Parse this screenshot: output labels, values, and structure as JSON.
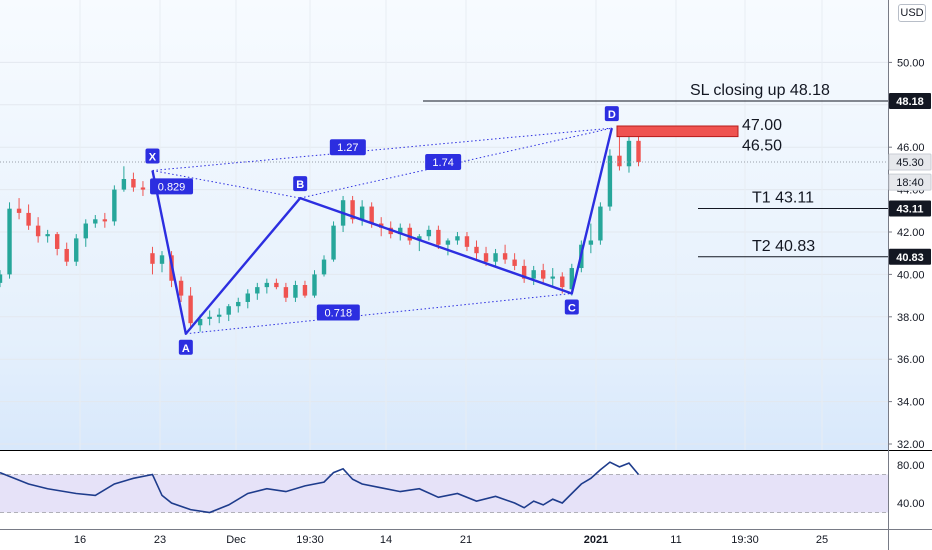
{
  "currency_label": "USD",
  "chart_data": {
    "type": "candlestick",
    "title": "",
    "price_axis": {
      "range": [
        32,
        52
      ],
      "ticks": [
        "32.00",
        "34.00",
        "36.00",
        "38.00",
        "40.00",
        "42.00",
        "44.00",
        "46.00",
        "48.00",
        "50.00"
      ]
    },
    "price_badges": [
      {
        "text": "48.18",
        "value": 48.18,
        "color": "#131722"
      },
      {
        "text": "45.30",
        "value": 45.3,
        "color": "#e6e8ec"
      },
      {
        "text": "18:40",
        "value": 44.35,
        "color": "#e6e8ec"
      },
      {
        "text": "43.11",
        "value": 43.11,
        "color": "#131722"
      },
      {
        "text": "40.83",
        "value": 40.83,
        "color": "#131722"
      }
    ],
    "x_axis_ticks": [
      "16",
      "23",
      "Dec",
      "19:30",
      "14",
      "21",
      "2021",
      "11",
      "19:30",
      "25"
    ],
    "levels": [
      {
        "label": "SL closing up 48.18",
        "value": 48.18
      },
      {
        "label": "T1   43.11",
        "value": 43.11
      },
      {
        "label": "T2   40.83",
        "value": 40.83
      }
    ],
    "entry_zone": {
      "upper_label": "47.00",
      "lower_label": "46.50",
      "upper": 47.0,
      "lower": 46.5,
      "color": "#ef5350"
    },
    "current_price_line": 45.3,
    "pattern": {
      "points": [
        {
          "label": "X",
          "t": 16,
          "price": 44.9
        },
        {
          "label": "A",
          "t": 19.5,
          "price": 37.2
        },
        {
          "label": "B",
          "t": 31.5,
          "price": 43.6
        },
        {
          "label": "C",
          "t": 60,
          "price": 39.1
        },
        {
          "label": "D",
          "t": 64.2,
          "price": 46.9
        }
      ],
      "ratios": [
        {
          "text": "0.829",
          "t": 18,
          "price": 44.15
        },
        {
          "text": "1.27",
          "t": 36.5,
          "price": 46.0
        },
        {
          "text": "1.74",
          "t": 46.5,
          "price": 45.3
        },
        {
          "text": "0.718",
          "t": 35.5,
          "price": 38.2
        }
      ],
      "color": "#2c2ee0"
    },
    "candles": [
      [
        0,
        39.6,
        40.2,
        39.4,
        40.0
      ],
      [
        1,
        40.0,
        43.4,
        39.8,
        43.1
      ],
      [
        2,
        43.1,
        43.6,
        42.6,
        42.9
      ],
      [
        3,
        42.9,
        43.3,
        42.1,
        42.3
      ],
      [
        4,
        42.3,
        42.7,
        41.5,
        41.8
      ],
      [
        5,
        41.8,
        42.1,
        41.5,
        41.9
      ],
      [
        6,
        41.9,
        42.0,
        40.9,
        41.2
      ],
      [
        7,
        41.2,
        41.5,
        40.4,
        40.6
      ],
      [
        8,
        40.6,
        41.9,
        40.4,
        41.7
      ],
      [
        9,
        41.7,
        42.6,
        41.3,
        42.4
      ],
      [
        10,
        42.4,
        42.8,
        42.2,
        42.6
      ],
      [
        11,
        42.6,
        42.9,
        42.2,
        42.5
      ],
      [
        12,
        42.5,
        44.2,
        42.3,
        44.0
      ],
      [
        13,
        44.0,
        45.1,
        43.9,
        44.5
      ],
      [
        14,
        44.5,
        44.8,
        43.9,
        44.1
      ],
      [
        15,
        44.1,
        44.4,
        43.7,
        44.0
      ],
      [
        16,
        41.0,
        41.3,
        40.0,
        40.5
      ],
      [
        17,
        40.5,
        41.1,
        40.1,
        40.9
      ],
      [
        18,
        40.9,
        41.1,
        39.4,
        39.7
      ],
      [
        19,
        39.7,
        39.9,
        38.7,
        39.0
      ],
      [
        20,
        39.0,
        39.4,
        37.4,
        37.7
      ],
      [
        21,
        37.6,
        38.1,
        37.3,
        37.9
      ],
      [
        22,
        37.9,
        38.3,
        37.6,
        38.0
      ],
      [
        23,
        38.0,
        38.4,
        37.7,
        38.1
      ],
      [
        24,
        38.1,
        38.6,
        37.8,
        38.5
      ],
      [
        25,
        38.5,
        38.9,
        38.2,
        38.7
      ],
      [
        26,
        38.7,
        39.3,
        38.4,
        39.1
      ],
      [
        27,
        39.1,
        39.6,
        38.8,
        39.4
      ],
      [
        28,
        39.4,
        39.8,
        39.1,
        39.6
      ],
      [
        29,
        39.6,
        39.8,
        39.3,
        39.4
      ],
      [
        30,
        39.4,
        39.6,
        38.7,
        38.9
      ],
      [
        31,
        38.9,
        39.7,
        38.7,
        39.5
      ],
      [
        32,
        39.5,
        39.7,
        38.9,
        39.0
      ],
      [
        33,
        39.0,
        40.2,
        38.9,
        40.0
      ],
      [
        34,
        40.0,
        40.9,
        39.9,
        40.7
      ],
      [
        35,
        40.7,
        42.5,
        40.6,
        42.3
      ],
      [
        36,
        42.3,
        43.7,
        42.0,
        43.5
      ],
      [
        37,
        43.5,
        43.7,
        42.4,
        42.6
      ],
      [
        38,
        42.6,
        43.5,
        42.3,
        43.2
      ],
      [
        39,
        43.2,
        43.4,
        42.2,
        42.4
      ],
      [
        40,
        42.4,
        42.7,
        41.8,
        42.2
      ],
      [
        41,
        42.2,
        42.5,
        41.7,
        41.9
      ],
      [
        42,
        41.9,
        42.4,
        41.6,
        42.2
      ],
      [
        43,
        42.2,
        42.4,
        41.4,
        41.6
      ],
      [
        44,
        41.6,
        41.9,
        41.1,
        41.8
      ],
      [
        45,
        41.8,
        42.3,
        41.6,
        42.1
      ],
      [
        46,
        42.1,
        42.3,
        41.2,
        41.4
      ],
      [
        47,
        41.4,
        41.7,
        40.9,
        41.6
      ],
      [
        48,
        41.6,
        42.0,
        41.4,
        41.8
      ],
      [
        49,
        41.8,
        42.0,
        41.1,
        41.3
      ],
      [
        50,
        41.3,
        41.6,
        40.7,
        41.0
      ],
      [
        51,
        41.0,
        41.3,
        40.4,
        40.6
      ],
      [
        52,
        40.6,
        41.2,
        40.4,
        41.0
      ],
      [
        53,
        41.0,
        41.4,
        40.5,
        40.7
      ],
      [
        54,
        40.7,
        41.0,
        40.2,
        40.4
      ],
      [
        55,
        40.4,
        40.7,
        39.6,
        39.8
      ],
      [
        56,
        39.8,
        40.4,
        39.5,
        40.2
      ],
      [
        57,
        40.2,
        40.5,
        39.6,
        39.8
      ],
      [
        58,
        39.8,
        40.3,
        39.4,
        39.9
      ],
      [
        59,
        39.9,
        40.1,
        39.1,
        39.4
      ],
      [
        60,
        39.3,
        40.5,
        39.0,
        40.3
      ],
      [
        61,
        40.3,
        41.6,
        40.1,
        41.4
      ],
      [
        62,
        41.4,
        42.4,
        41.0,
        41.6
      ],
      [
        63,
        41.6,
        43.4,
        41.4,
        43.2
      ],
      [
        64,
        43.2,
        45.9,
        43.0,
        45.6
      ],
      [
        65,
        45.6,
        46.6,
        44.9,
        45.1
      ],
      [
        66,
        45.1,
        46.7,
        44.8,
        46.3
      ],
      [
        67,
        46.3,
        46.5,
        45.1,
        45.3
      ]
    ],
    "rsi": {
      "ticks": [
        "80.00",
        "40.00"
      ],
      "overbought": 70,
      "oversold": 30,
      "range": [
        20,
        90
      ],
      "values": [
        [
          0,
          72
        ],
        [
          3,
          60
        ],
        [
          5,
          55
        ],
        [
          8,
          50
        ],
        [
          10,
          48
        ],
        [
          12,
          60
        ],
        [
          14,
          66
        ],
        [
          16,
          70
        ],
        [
          17,
          48
        ],
        [
          18,
          40
        ],
        [
          20,
          33
        ],
        [
          22,
          30
        ],
        [
          24,
          38
        ],
        [
          26,
          50
        ],
        [
          28,
          55
        ],
        [
          30,
          52
        ],
        [
          32,
          58
        ],
        [
          34,
          62
        ],
        [
          35,
          72
        ],
        [
          36,
          76
        ],
        [
          37,
          65
        ],
        [
          38,
          60
        ],
        [
          40,
          56
        ],
        [
          42,
          52
        ],
        [
          44,
          55
        ],
        [
          46,
          46
        ],
        [
          48,
          50
        ],
        [
          50,
          42
        ],
        [
          52,
          47
        ],
        [
          54,
          40
        ],
        [
          55,
          35
        ],
        [
          56,
          42
        ],
        [
          57,
          38
        ],
        [
          58,
          44
        ],
        [
          59,
          40
        ],
        [
          60,
          50
        ],
        [
          61,
          60
        ],
        [
          62,
          66
        ],
        [
          63,
          75
        ],
        [
          64,
          83
        ],
        [
          65,
          78
        ],
        [
          66,
          82
        ],
        [
          67,
          70
        ]
      ]
    }
  }
}
